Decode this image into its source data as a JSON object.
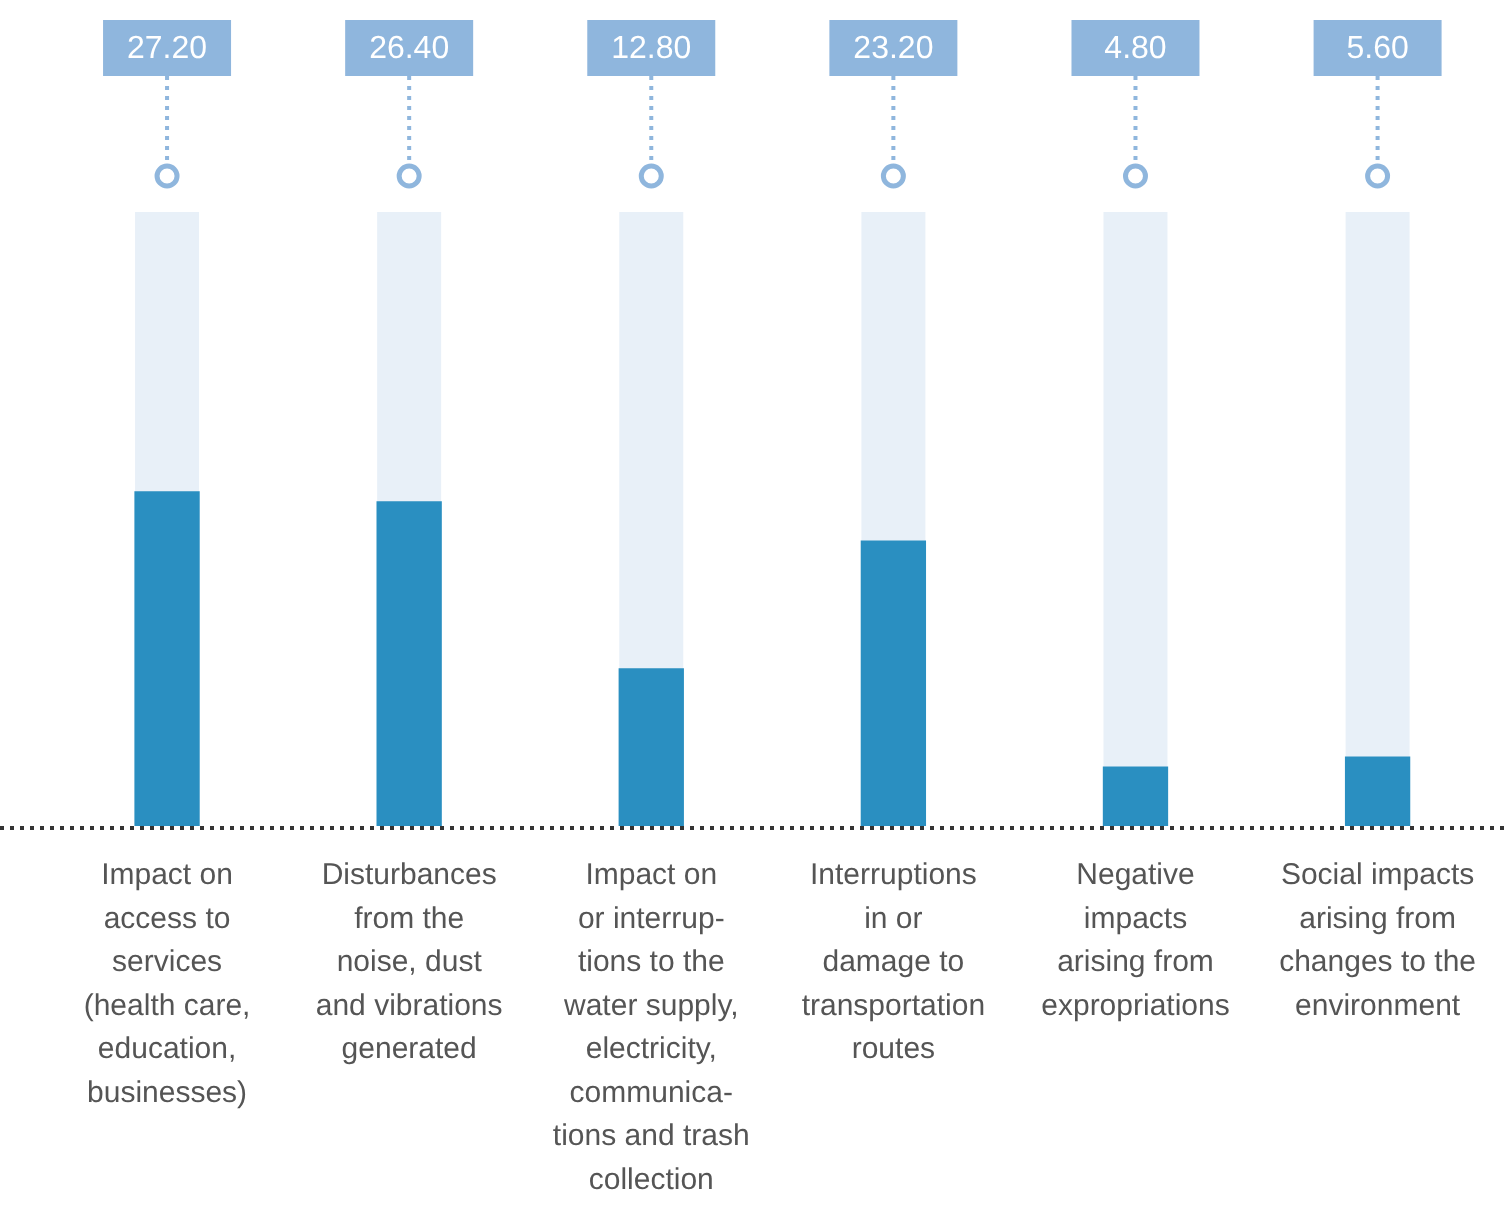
{
  "chart_data": {
    "type": "bar",
    "categories": [
      "Impact on\naccess to\nservices\n(health care,\neducation,\nbusinesses)",
      "Disturbances\nfrom the\nnoise, dust\nand vibrations\ngenerated",
      "Impact on\nor interrup-\ntions to the\nwater supply,\nelectricity,\ncommunica-\ntions and trash\ncollection",
      "Interruptions\nin or\ndamage to\ntransportation\nroutes",
      "Negative\nimpacts\narising from\nexpropriations",
      "Social impacts\narising from\nchanges to the\nenvironment"
    ],
    "values": [
      27.2,
      26.4,
      12.8,
      23.2,
      4.8,
      5.6
    ],
    "value_labels": [
      "27.20",
      "26.40",
      "12.80",
      "23.20",
      "4.80",
      "5.60"
    ],
    "color": "#2a8fc1",
    "ylim": [
      0,
      50
    ],
    "tick_labels": "x",
    "grid": false,
    "legend": false
  }
}
